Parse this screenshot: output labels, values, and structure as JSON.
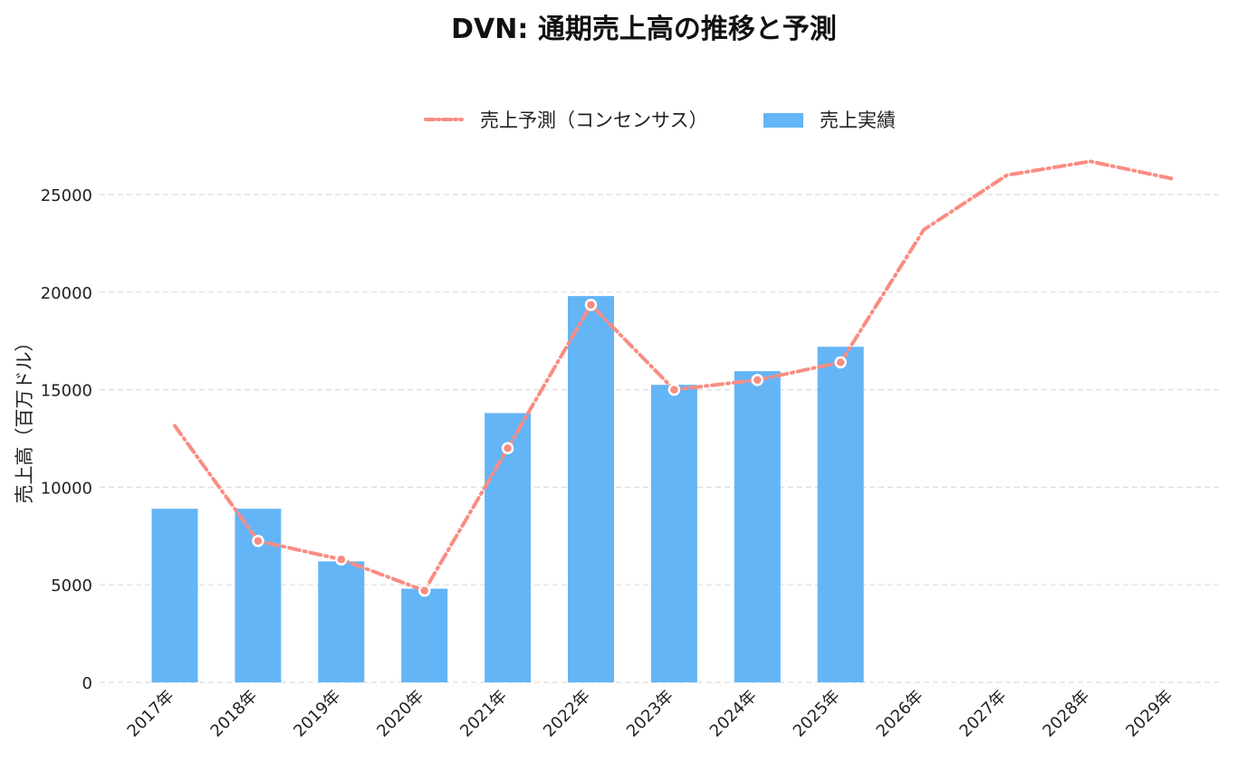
{
  "chart_data": {
    "type": "bar",
    "title": "DVN: 通期売上高の推移と予測",
    "ylabel": "売上高（百万ドル）",
    "xlabel": "",
    "categories": [
      "2017年",
      "2018年",
      "2019年",
      "2020年",
      "2021年",
      "2022年",
      "2023年",
      "2024年",
      "2025年",
      "2026年",
      "2027年",
      "2028年",
      "2029年"
    ],
    "y_ticks": [
      0,
      5000,
      10000,
      15000,
      20000,
      25000
    ],
    "ylim": [
      0,
      27000
    ],
    "grid": true,
    "legend_position": "top-center",
    "series": [
      {
        "name": "売上予測（コンセンサス）",
        "type": "line",
        "style": "dash-dot",
        "color": "#fa8c82",
        "values": [
          13150,
          7250,
          6300,
          4700,
          12000,
          19350,
          15000,
          15500,
          16400,
          23200,
          26000,
          26700,
          25800
        ],
        "markers": [
          false,
          true,
          true,
          true,
          true,
          true,
          true,
          true,
          true,
          false,
          false,
          false,
          false
        ]
      },
      {
        "name": "売上実績",
        "type": "bar",
        "color": "#64b5f6",
        "values": [
          8900,
          8900,
          6200,
          4800,
          13800,
          19800,
          15250,
          15950,
          17200,
          null,
          null,
          null,
          null
        ]
      }
    ]
  }
}
